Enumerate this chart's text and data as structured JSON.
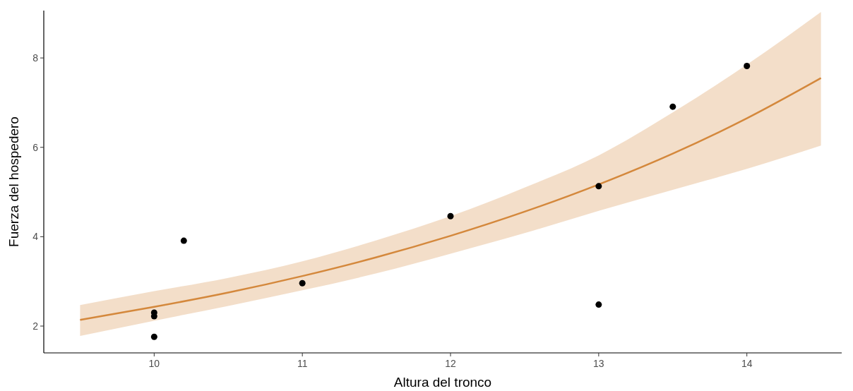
{
  "chart_data": {
    "type": "scatter",
    "xlabel": "Altura del tronco",
    "ylabel": "Fuerza del hospedero",
    "xlim": [
      9.255,
      14.64
    ],
    "ylim": [
      1.4,
      9.06
    ],
    "xticks": [
      10,
      11,
      12,
      13,
      14
    ],
    "yticks": [
      2,
      4,
      6,
      8
    ],
    "grid": false,
    "series": [
      {
        "color": "#000000",
        "marker": "circle",
        "x": [
          10,
          10,
          10,
          10.2,
          11,
          12,
          13,
          13,
          13.5,
          14
        ],
        "values": [
          1.76,
          2.22,
          2.3,
          3.91,
          2.96,
          4.46,
          5.13,
          2.48,
          6.91,
          7.82
        ]
      },
      {
        "type": "line",
        "color": "#d4883c",
        "marker": "none",
        "line_style": "solid",
        "x": [
          9.5,
          10,
          10.5,
          11,
          11.5,
          12,
          12.5,
          13,
          13.5,
          14,
          14.5
        ],
        "values": [
          2.14,
          2.43,
          2.75,
          3.12,
          3.54,
          4.02,
          4.56,
          5.17,
          5.86,
          6.65,
          7.55
        ],
        "lower": [
          1.78,
          2.12,
          2.45,
          2.8,
          3.18,
          3.62,
          4.08,
          4.58,
          5.05,
          5.52,
          6.04
        ],
        "upper": [
          2.47,
          2.78,
          3.08,
          3.45,
          3.92,
          4.46,
          5.1,
          5.82,
          6.78,
          7.85,
          9.03
        ]
      }
    ]
  }
}
